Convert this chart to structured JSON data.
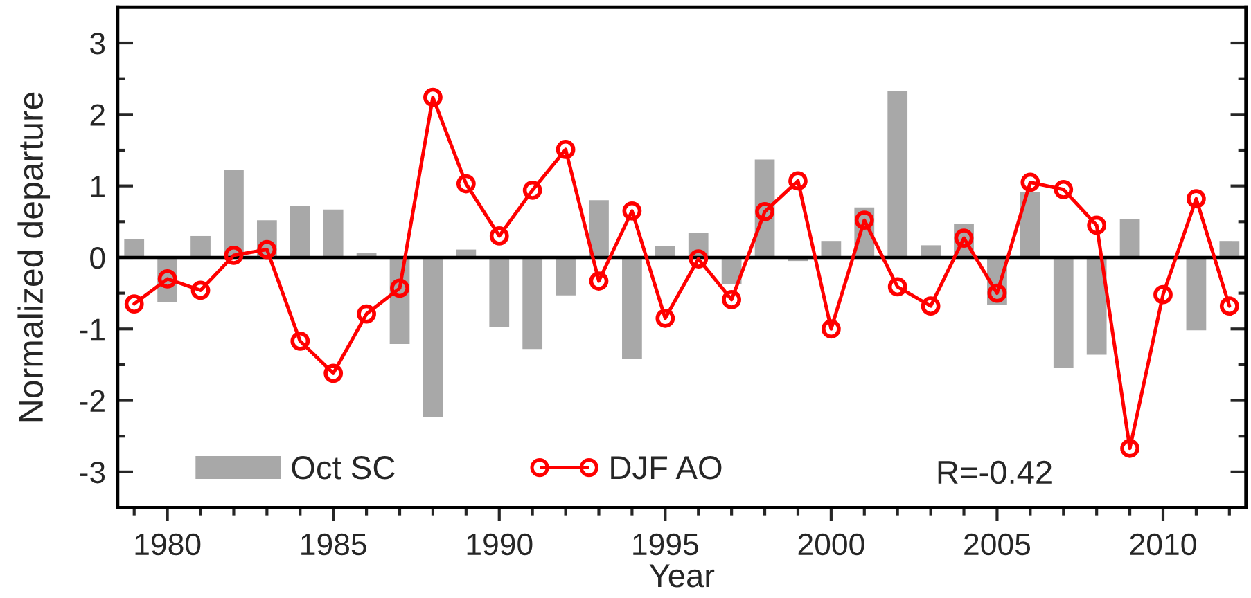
{
  "chart_data": {
    "type": "bar",
    "xlabel": "Year",
    "ylabel": "Normalized departure",
    "x": [
      1979,
      1980,
      1981,
      1982,
      1983,
      1984,
      1985,
      1986,
      1987,
      1988,
      1989,
      1990,
      1991,
      1992,
      1993,
      1994,
      1995,
      1996,
      1997,
      1998,
      1999,
      2000,
      2001,
      2002,
      2003,
      2004,
      2005,
      2006,
      2007,
      2008,
      2009,
      2010,
      2011,
      2012
    ],
    "series": [
      {
        "name": "Oct SC",
        "color": "#a8a8a8",
        "values": [
          0.25,
          -0.63,
          0.3,
          1.22,
          0.52,
          0.72,
          0.67,
          0.06,
          -1.21,
          -2.23,
          0.11,
          -0.97,
          -1.28,
          -0.53,
          0.8,
          -1.42,
          0.16,
          0.34,
          -0.37,
          1.37,
          -0.05,
          0.23,
          0.7,
          2.33,
          0.17,
          0.47,
          -0.66,
          0.91,
          -1.54,
          -1.36,
          0.54,
          0.0,
          -1.02,
          0.23
        ]
      },
      {
        "name": "DJF AO",
        "type": "line",
        "color": "#ff0000",
        "marker": "circle",
        "line_style": "solid",
        "values": [
          -0.65,
          -0.3,
          -0.46,
          0.03,
          0.11,
          -1.17,
          -1.62,
          -0.79,
          -0.43,
          2.24,
          1.03,
          0.3,
          0.94,
          1.51,
          -0.33,
          0.65,
          -0.85,
          -0.02,
          -0.59,
          0.64,
          1.07,
          -1.0,
          0.52,
          -0.41,
          -0.68,
          0.27,
          -0.5,
          1.05,
          0.95,
          0.45,
          -2.67,
          -0.52,
          0.82,
          -0.68
        ]
      }
    ],
    "xlim": [
      1978.5,
      2012.5
    ],
    "xticks": [
      {
        "value": 1979,
        "label": null
      },
      1980,
      {
        "value": 1981,
        "label": null
      },
      {
        "value": 1982,
        "label": null
      },
      {
        "value": 1983,
        "label": null
      },
      {
        "value": 1984,
        "label": null
      },
      1985,
      {
        "value": 1986,
        "label": null
      },
      {
        "value": 1987,
        "label": null
      },
      {
        "value": 1988,
        "label": null
      },
      {
        "value": 1989,
        "label": null
      },
      1990,
      {
        "value": 1991,
        "label": null
      },
      {
        "value": 1992,
        "label": null
      },
      {
        "value": 1993,
        "label": null
      },
      {
        "value": 1994,
        "label": null
      },
      1995,
      {
        "value": 1996,
        "label": null
      },
      {
        "value": 1997,
        "label": null
      },
      {
        "value": 1998,
        "label": null
      },
      {
        "value": 1999,
        "label": null
      },
      2000,
      {
        "value": 2001,
        "label": null
      },
      {
        "value": 2002,
        "label": null
      },
      {
        "value": 2003,
        "label": null
      },
      {
        "value": 2004,
        "label": null
      },
      2005,
      {
        "value": 2006,
        "label": null
      },
      {
        "value": 2007,
        "label": null
      },
      {
        "value": 2008,
        "label": null
      },
      {
        "value": 2009,
        "label": null
      },
      2010,
      {
        "value": 2011,
        "label": null
      },
      {
        "value": 2012,
        "label": null
      }
    ],
    "ylim": [
      -3.5,
      3.5
    ],
    "yticks": [
      -3,
      {
        "value": -2.5,
        "label": null
      },
      -2,
      {
        "value": -1.5,
        "label": null
      },
      -1,
      {
        "value": -0.5,
        "label": null
      },
      0,
      {
        "value": 0.5,
        "label": null
      },
      1,
      {
        "value": 1.5,
        "label": null
      },
      2,
      {
        "value": 2.5,
        "label": null
      },
      3
    ],
    "ref_lines": [
      {
        "axis": "y",
        "value": 0,
        "color": "#000000"
      }
    ],
    "annotations": [
      "R=-0.42"
    ],
    "legend": "bottom left",
    "grid": false
  }
}
